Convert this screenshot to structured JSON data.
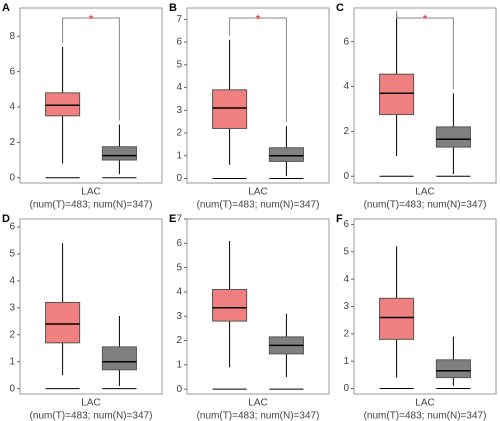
{
  "chart_data": [
    {
      "type": "box",
      "panel": "A",
      "xlabel": "LAC",
      "note": "(num(T)=483; num(N)=347)",
      "significance": "*",
      "ylim": [
        -0.3,
        9.6
      ],
      "yticks": [
        0,
        2,
        4,
        6,
        8
      ],
      "boxes": [
        {
          "color": "#f08080",
          "low": 0.8,
          "q1": 3.5,
          "median": 4.1,
          "q3": 4.8,
          "high": 7.4
        },
        {
          "color": "#808080",
          "low": 0.2,
          "q1": 1.0,
          "median": 1.25,
          "q3": 1.75,
          "high": 3.0
        }
      ]
    },
    {
      "type": "box",
      "panel": "B",
      "xlabel": "LAC",
      "note": "(num(T)=483; num(N)=347)",
      "significance": "*",
      "ylim": [
        -0.2,
        7.5
      ],
      "yticks": [
        0,
        1,
        2,
        3,
        4,
        5,
        6,
        7
      ],
      "boxes": [
        {
          "color": "#f08080",
          "low": 0.6,
          "q1": 2.2,
          "median": 3.1,
          "q3": 3.9,
          "high": 6.1
        },
        {
          "color": "#808080",
          "low": 0.1,
          "q1": 0.75,
          "median": 1.0,
          "q3": 1.35,
          "high": 2.3
        }
      ]
    },
    {
      "type": "box",
      "panel": "C",
      "xlabel": "LAC",
      "note": "(num(T)=483; num(N)=347)",
      "significance": "*",
      "ylim": [
        -0.3,
        7.5
      ],
      "yticks": [
        0,
        2,
        4,
        6
      ],
      "boxes": [
        {
          "color": "#f08080",
          "low": 0.9,
          "q1": 2.75,
          "median": 3.7,
          "q3": 4.55,
          "high": 7.2
        },
        {
          "color": "#808080",
          "low": 0.1,
          "q1": 1.3,
          "median": 1.65,
          "q3": 2.2,
          "high": 3.7
        }
      ]
    },
    {
      "type": "box",
      "panel": "D",
      "xlabel": "LAC",
      "note": "(num(T)=483; num(N)=347)",
      "ylim": [
        -0.2,
        6.3
      ],
      "yticks": [
        0,
        1,
        2,
        3,
        4,
        5,
        6
      ],
      "boxes": [
        {
          "color": "#f08080",
          "low": 0.5,
          "q1": 1.7,
          "median": 2.4,
          "q3": 3.2,
          "high": 5.4
        },
        {
          "color": "#808080",
          "low": 0.1,
          "q1": 0.7,
          "median": 1.0,
          "q3": 1.55,
          "high": 2.7
        }
      ]
    },
    {
      "type": "box",
      "panel": "E",
      "xlabel": "LAC",
      "note": "(num(T)=483; num(N)=347)",
      "ylim": [
        -0.2,
        7.0
      ],
      "yticks": [
        0,
        1,
        2,
        3,
        4,
        5,
        6,
        7
      ],
      "boxes": [
        {
          "color": "#f08080",
          "low": 0.9,
          "q1": 2.8,
          "median": 3.35,
          "q3": 4.1,
          "high": 6.1
        },
        {
          "color": "#808080",
          "low": 0.5,
          "q1": 1.45,
          "median": 1.8,
          "q3": 2.15,
          "high": 3.1
        }
      ]
    },
    {
      "type": "box",
      "panel": "F",
      "xlabel": "LAC",
      "note": "(num(T)=483; num(N)=347)",
      "ylim": [
        -0.2,
        6.2
      ],
      "yticks": [
        0,
        1,
        2,
        3,
        4,
        5,
        6
      ],
      "boxes": [
        {
          "color": "#f08080",
          "low": 0.4,
          "q1": 1.8,
          "median": 2.6,
          "q3": 3.3,
          "high": 5.2
        },
        {
          "color": "#808080",
          "low": 0.1,
          "q1": 0.4,
          "median": 0.65,
          "q3": 1.05,
          "high": 1.9
        }
      ]
    }
  ]
}
